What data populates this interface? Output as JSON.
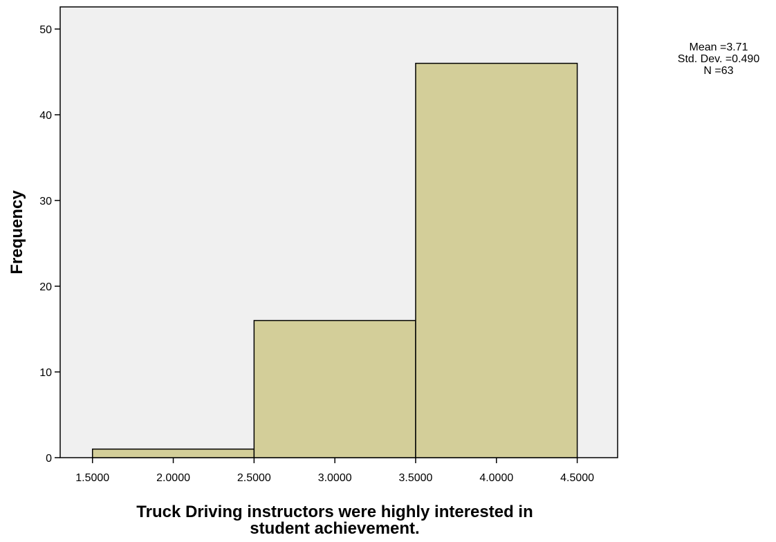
{
  "chart_data": {
    "type": "bar",
    "title": "",
    "xlabel_lines": [
      "Truck Driving instructors were highly interested in",
      "student achievement."
    ],
    "ylabel": "Frequency",
    "bins": [
      {
        "start": 1.5,
        "end": 2.5,
        "value": 1
      },
      {
        "start": 2.5,
        "end": 3.5,
        "value": 16
      },
      {
        "start": 3.5,
        "end": 4.5,
        "value": 46
      }
    ],
    "x_ticks": [
      "1.5000",
      "2.0000",
      "2.5000",
      "3.0000",
      "3.5000",
      "4.0000",
      "4.5000"
    ],
    "y_ticks": [
      "0",
      "10",
      "20",
      "30",
      "40",
      "50"
    ],
    "xlim": [
      1.3,
      4.75
    ],
    "ylim": [
      0,
      50
    ],
    "grid": false,
    "bar_color": "#d3ce99",
    "plot_background": "#f0f0f0",
    "stats": {
      "mean": "Mean =3.71",
      "std_dev": "Std. Dev. =0.490",
      "n": "N =63"
    }
  }
}
